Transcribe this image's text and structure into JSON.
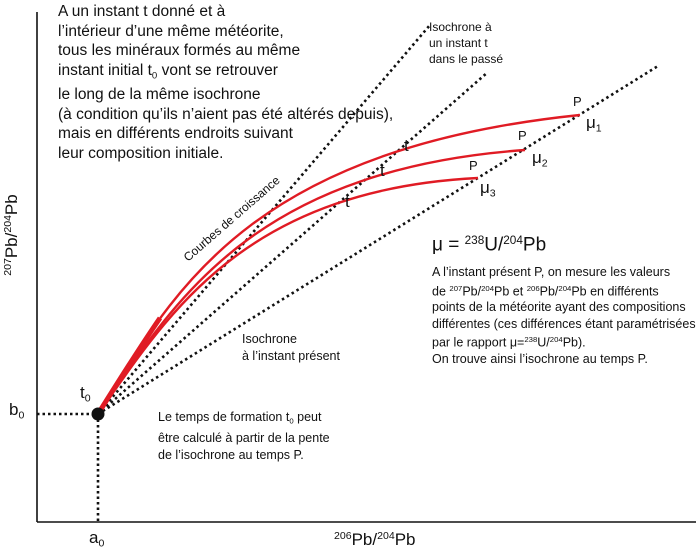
{
  "intro_lines": [
    "A un instant t donné et à",
    "l’intérieur d’une même météorite,",
    "tous les minéraux formés au même",
    [
      "instant initial t",
      "0",
      " vont se retrouver"
    ],
    "le long de la même isochrone",
    "(à condition qu’ils n’aient pas été altérés depuis),",
    "mais en différents endroits suivant",
    "leur composition initiale."
  ],
  "isochrone_past_label": [
    "Isochrone à",
    "un instant t",
    "dans le passé"
  ],
  "isochrone_present_label": [
    "Isochrone",
    "à l’instant présent"
  ],
  "growth_curves_label": "Courbes de croissance",
  "t_label": "t",
  "p_label": "P",
  "mu_labels": [
    {
      "base": "μ",
      "sub": "1"
    },
    {
      "base": "μ",
      "sub": "2"
    },
    {
      "base": "μ",
      "sub": "3"
    }
  ],
  "mu_formula": {
    "lhs": "μ = ",
    "sup1": "238",
    "mid": "U/",
    "sup2": "204",
    "tail": "Pb"
  },
  "present_text": {
    "line1": "A l’instant présent P, on mesure les valeurs",
    "line2": {
      "a": "de ",
      "s1": "207",
      "b": "Pb/",
      "s2": "204",
      "c": "Pb et ",
      "s3": "206",
      "d": "Pb/",
      "s4": "204",
      "e": "Pb en différents"
    },
    "line3": "points de la météorite ayant des compositions",
    "line4": "différentes (ces différences étant paramétrisées",
    "line5": {
      "a": "par le rapport μ=",
      "s1": "238",
      "b": "U/",
      "s2": "204",
      "c": "Pb)."
    },
    "line6": "On trouve ainsi l’isochrone au temps P."
  },
  "formation_text": {
    "line1": {
      "a": "Le temps de formation t",
      "s": "0",
      "b": " peut"
    },
    "line2": "être calculé à partir de la pente",
    "line3": "de l’isochrone au temps P."
  },
  "t0_label": {
    "base": "t",
    "sub": "0"
  },
  "b0_label": {
    "base": "b",
    "sub": "0"
  },
  "a0_label": {
    "base": "a",
    "sub": "0"
  },
  "y_axis_label": {
    "s1": "207",
    "a": "Pb/",
    "s2": "204",
    "b": "Pb"
  },
  "x_axis_label": {
    "s1": "206",
    "a": "Pb/",
    "s2": "204",
    "b": "Pb"
  },
  "colors": {
    "curve": "#e01b24",
    "line": "#111111"
  }
}
